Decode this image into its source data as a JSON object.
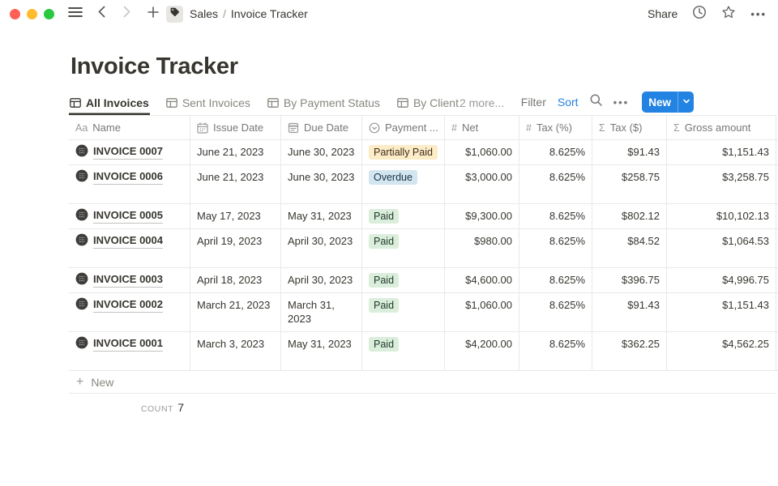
{
  "colors": {
    "accent_blue": "#2383e2",
    "text_primary": "#37352f",
    "text_secondary": "#787774",
    "border": "#e9e9e7",
    "badge_yellow_bg": "#fdecc8",
    "badge_blue_bg": "#d3e5ef",
    "badge_green_bg": "#dbeddb",
    "traffic_red": "#ff5f57",
    "traffic_yellow": "#febc2e",
    "traffic_green": "#28c840"
  },
  "titlebar": {
    "breadcrumb_parent": "Sales",
    "breadcrumb_separator": "/",
    "breadcrumb_current": "Invoice Tracker",
    "share_label": "Share"
  },
  "page": {
    "title": "Invoice Tracker"
  },
  "view_tabs": {
    "tabs": [
      {
        "label": "All Invoices",
        "icon": "table-view-icon",
        "active": true
      },
      {
        "label": "Sent Invoices",
        "icon": "table-view-icon",
        "active": false
      },
      {
        "label": "By Payment Status",
        "icon": "table-view-icon",
        "active": false
      },
      {
        "label": "By Client",
        "icon": "table-view-icon",
        "active": false
      }
    ],
    "more_label": "2 more..."
  },
  "toolbar": {
    "filter_label": "Filter",
    "sort_label": "Sort",
    "new_label": "New"
  },
  "table": {
    "columns": [
      {
        "label": "Name",
        "icon": "text",
        "align": "left"
      },
      {
        "label": "Issue Date",
        "icon": "calendar",
        "align": "left"
      },
      {
        "label": "Due Date",
        "icon": "date",
        "align": "left"
      },
      {
        "label": "Payment ...",
        "icon": "select",
        "align": "left"
      },
      {
        "label": "Net",
        "icon": "hash",
        "align": "right"
      },
      {
        "label": "Tax (%)",
        "icon": "hash",
        "align": "right"
      },
      {
        "label": "Tax ($)",
        "icon": "sigma",
        "align": "right"
      },
      {
        "label": "Gross amount",
        "icon": "sigma",
        "align": "right"
      }
    ],
    "rows": [
      {
        "name": "INVOICE 0007",
        "issue_date": "June 21, 2023",
        "due_date": "June 30, 2023",
        "payment_status": "Partially Paid",
        "status_color": "yellow",
        "net": "$1,060.00",
        "tax_pct": "8.625%",
        "tax_usd": "$91.43",
        "gross": "$1,151.43",
        "tall": false
      },
      {
        "name": "INVOICE 0006",
        "issue_date": "June 21, 2023",
        "due_date": "June 30, 2023",
        "payment_status": "Overdue",
        "status_color": "blue",
        "net": "$3,000.00",
        "tax_pct": "8.625%",
        "tax_usd": "$258.75",
        "gross": "$3,258.75",
        "tall": true
      },
      {
        "name": "INVOICE 0005",
        "issue_date": "May 17, 2023",
        "due_date": "May 31, 2023",
        "payment_status": "Paid",
        "status_color": "green",
        "net": "$9,300.00",
        "tax_pct": "8.625%",
        "tax_usd": "$802.12",
        "gross": "$10,102.13",
        "tall": false
      },
      {
        "name": "INVOICE 0004",
        "issue_date": "April 19, 2023",
        "due_date": "April 30, 2023",
        "payment_status": "Paid",
        "status_color": "green",
        "net": "$980.00",
        "tax_pct": "8.625%",
        "tax_usd": "$84.52",
        "gross": "$1,064.53",
        "tall": true
      },
      {
        "name": "INVOICE 0003",
        "issue_date": "April 18, 2023",
        "due_date": "April 30, 2023",
        "payment_status": "Paid",
        "status_color": "green",
        "net": "$4,600.00",
        "tax_pct": "8.625%",
        "tax_usd": "$396.75",
        "gross": "$4,996.75",
        "tall": false
      },
      {
        "name": "INVOICE 0002",
        "issue_date": "March 21, 2023",
        "due_date": "March 31, 2023",
        "payment_status": "Paid",
        "status_color": "green",
        "net": "$1,060.00",
        "tax_pct": "8.625%",
        "tax_usd": "$91.43",
        "gross": "$1,151.43",
        "tall": true
      },
      {
        "name": "INVOICE 0001",
        "issue_date": "March 3, 2023",
        "due_date": "May 31, 2023",
        "payment_status": "Paid",
        "status_color": "green",
        "net": "$4,200.00",
        "tax_pct": "8.625%",
        "tax_usd": "$362.25",
        "gross": "$4,562.25",
        "tall": true
      }
    ],
    "new_row_label": "New",
    "summary": {
      "label": "COUNT",
      "value": "7"
    }
  }
}
